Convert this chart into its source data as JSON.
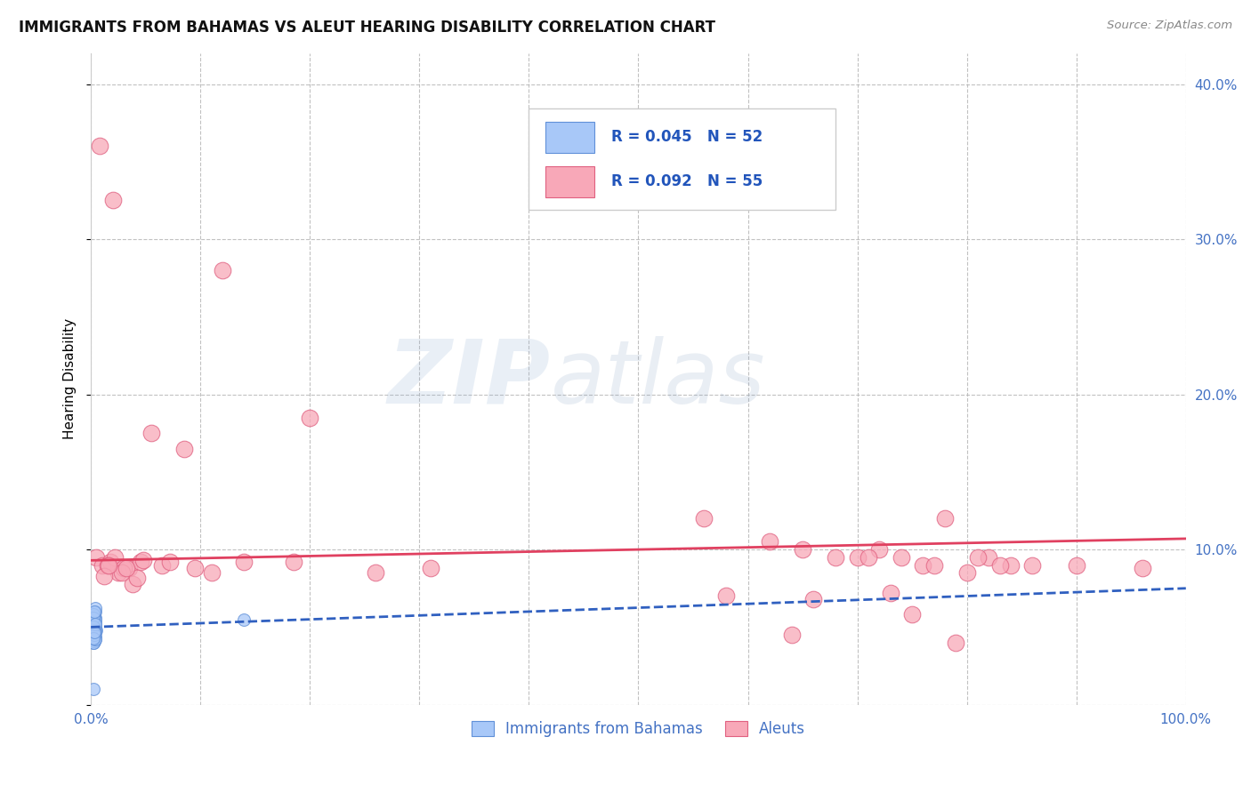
{
  "title": "IMMIGRANTS FROM BAHAMAS VS ALEUT HEARING DISABILITY CORRELATION CHART",
  "source": "Source: ZipAtlas.com",
  "ylabel": "Hearing Disability",
  "xlim": [
    0.0,
    1.0
  ],
  "ylim": [
    0.0,
    0.42
  ],
  "x_ticks": [
    0.0,
    0.1,
    0.2,
    0.3,
    0.4,
    0.5,
    0.6,
    0.7,
    0.8,
    0.9,
    1.0
  ],
  "x_tick_labels": [
    "0.0%",
    "",
    "",
    "",
    "",
    "",
    "",
    "",
    "",
    "",
    "100.0%"
  ],
  "y_ticks": [
    0.0,
    0.1,
    0.2,
    0.3,
    0.4
  ],
  "y_tick_labels": [
    "",
    "10.0%",
    "20.0%",
    "30.0%",
    "40.0%"
  ],
  "legend_label_blue": "Immigrants from Bahamas",
  "legend_label_pink": "Aleuts",
  "blue_color": "#A8C8F8",
  "pink_color": "#F8A8B8",
  "blue_edge_color": "#6090D8",
  "pink_edge_color": "#E06080",
  "blue_line_color": "#3060C0",
  "pink_line_color": "#E04060",
  "grid_color": "#BBBBBB",
  "background_color": "#FFFFFF",
  "watermark_zip": "ZIP",
  "watermark_atlas": "atlas",
  "blue_scatter_x": [
    0.002,
    0.003,
    0.004,
    0.002,
    0.003,
    0.005,
    0.003,
    0.002,
    0.004,
    0.003,
    0.002,
    0.003,
    0.004,
    0.002,
    0.003,
    0.002,
    0.004,
    0.003,
    0.002,
    0.003,
    0.004,
    0.002,
    0.003,
    0.002,
    0.004,
    0.003,
    0.002,
    0.003,
    0.004,
    0.002,
    0.003,
    0.002,
    0.004,
    0.003,
    0.002,
    0.003,
    0.004,
    0.002,
    0.003,
    0.004,
    0.003,
    0.002,
    0.004,
    0.003,
    0.002,
    0.003,
    0.004,
    0.002,
    0.003,
    0.002,
    0.14,
    0.003
  ],
  "blue_scatter_y": [
    0.05,
    0.055,
    0.06,
    0.045,
    0.042,
    0.048,
    0.052,
    0.058,
    0.062,
    0.046,
    0.04,
    0.044,
    0.056,
    0.05,
    0.043,
    0.047,
    0.053,
    0.041,
    0.049,
    0.057,
    0.044,
    0.051,
    0.046,
    0.054,
    0.042,
    0.048,
    0.043,
    0.05,
    0.055,
    0.045,
    0.041,
    0.052,
    0.047,
    0.043,
    0.058,
    0.046,
    0.051,
    0.04,
    0.053,
    0.049,
    0.044,
    0.056,
    0.042,
    0.048,
    0.05,
    0.045,
    0.052,
    0.043,
    0.047,
    0.01,
    0.055,
    0.06
  ],
  "pink_scatter_x": [
    0.005,
    0.01,
    0.025,
    0.018,
    0.035,
    0.022,
    0.008,
    0.015,
    0.012,
    0.03,
    0.02,
    0.045,
    0.038,
    0.028,
    0.016,
    0.12,
    0.055,
    0.065,
    0.042,
    0.032,
    0.048,
    0.2,
    0.085,
    0.072,
    0.095,
    0.11,
    0.14,
    0.31,
    0.26,
    0.185,
    0.56,
    0.62,
    0.65,
    0.68,
    0.7,
    0.72,
    0.74,
    0.76,
    0.78,
    0.8,
    0.82,
    0.84,
    0.58,
    0.64,
    0.66,
    0.71,
    0.73,
    0.75,
    0.77,
    0.79,
    0.81,
    0.83,
    0.86,
    0.9,
    0.96
  ],
  "pink_scatter_y": [
    0.095,
    0.09,
    0.085,
    0.092,
    0.088,
    0.095,
    0.36,
    0.09,
    0.083,
    0.088,
    0.325,
    0.092,
    0.078,
    0.085,
    0.09,
    0.28,
    0.175,
    0.09,
    0.082,
    0.088,
    0.093,
    0.185,
    0.165,
    0.092,
    0.088,
    0.085,
    0.092,
    0.088,
    0.085,
    0.092,
    0.12,
    0.105,
    0.1,
    0.095,
    0.095,
    0.1,
    0.095,
    0.09,
    0.12,
    0.085,
    0.095,
    0.09,
    0.07,
    0.045,
    0.068,
    0.095,
    0.072,
    0.058,
    0.09,
    0.04,
    0.095,
    0.09,
    0.09,
    0.09,
    0.088
  ],
  "blue_trend_y_start": 0.05,
  "blue_trend_y_end": 0.075,
  "pink_trend_y_start": 0.093,
  "pink_trend_y_end": 0.107
}
